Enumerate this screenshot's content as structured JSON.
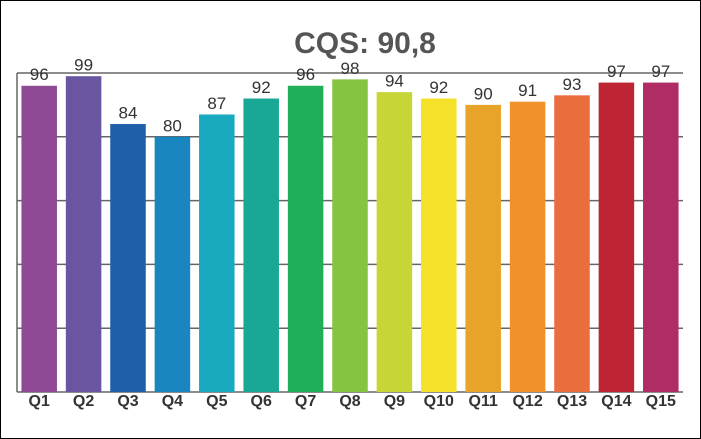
{
  "chart_data": {
    "type": "bar",
    "title": "CQS: 90,8",
    "categories": [
      "Q1",
      "Q2",
      "Q3",
      "Q4",
      "Q5",
      "Q6",
      "Q7",
      "Q8",
      "Q9",
      "Q10",
      "Q11",
      "Q12",
      "Q13",
      "Q14",
      "Q15"
    ],
    "values": [
      96,
      99,
      84,
      80,
      87,
      92,
      96,
      98,
      94,
      92,
      90,
      91,
      93,
      97,
      97
    ],
    "colors": [
      "#8e4a94",
      "#6a55a0",
      "#1f5ea8",
      "#1a86c0",
      "#1aaac0",
      "#1aa896",
      "#1fae5a",
      "#85c440",
      "#c6d636",
      "#f5e12a",
      "#e8a428",
      "#f2902a",
      "#ea6d3e",
      "#bd2434",
      "#b02c64"
    ],
    "ylim": [
      0,
      100
    ],
    "yticks": [
      0,
      20,
      40,
      60,
      80,
      100
    ],
    "grid": true
  }
}
